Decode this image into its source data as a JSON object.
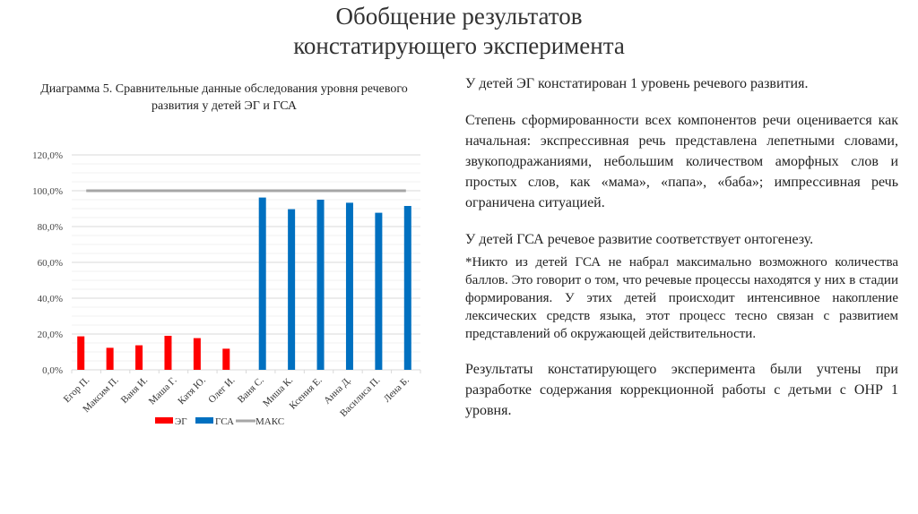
{
  "title_line1": "Обобщение результатов",
  "title_line2": "констатирующего эксперимента",
  "chart_data": {
    "type": "bar",
    "title": "Диаграмма 5. Сравнительные данные обследования уровня речевого развития  у детей ЭГ и ГСА",
    "categories": [
      "Егор П.",
      "Максим П.",
      "Ваня И.",
      "Маша Г.",
      "Катя Ю.",
      "Олег И.",
      "Ваня С.",
      "Миша К.",
      "Ксения Е.",
      "Анна Д.",
      "Василиса П.",
      "Лена Б."
    ],
    "series": [
      {
        "name": "ЭГ",
        "type": "bar",
        "color": "#ff0000",
        "values": [
          18.7,
          12.3,
          13.7,
          19.0,
          17.7,
          11.8,
          null,
          null,
          null,
          null,
          null,
          null
        ]
      },
      {
        "name": "ГСА",
        "type": "bar",
        "color": "#0070c0",
        "values": [
          null,
          null,
          null,
          null,
          null,
          null,
          96.2,
          89.7,
          95.0,
          93.3,
          87.7,
          91.5
        ]
      },
      {
        "name": "МАКС",
        "type": "line",
        "color": "#a6a6a6",
        "values": [
          100,
          100,
          100,
          100,
          100,
          100,
          100,
          100,
          100,
          100,
          100,
          100
        ]
      }
    ],
    "yticks": [
      "0,0%",
      "20,0%",
      "40,0%",
      "60,0%",
      "80,0%",
      "100,0%",
      "120,0%"
    ],
    "ylim": [
      0,
      120
    ],
    "grid": true,
    "legend": "bottom"
  },
  "text": {
    "p1": "У детей ЭГ  констатирован 1 уровень речевого развития.",
    "p2": "Степень сформированности всех компонентов речи оценивается как начальная: экспрессивная речь представлена лепетными словами, звукоподражаниями, небольшим количеством аморфных слов и простых слов, как «мама», «папа», «баба»; импрессивная речь ограничена ситуацией.",
    "p3": "У детей ГСА  речевое развитие  соответствует онтогенезу.",
    "p4": "*Никто из детей ГСА не набрал максимально возможного количества баллов. Это говорит о том, что речевые процессы находятся у них в стадии формирования.  У этих детей происходит интенсивное накопление лексических средств языка, этот процесс тесно связан с развитием представлений об окружающей действительности.",
    "p5": "Результаты констатирующего эксперимента были учтены при разработке содержания коррекционной работы с детьми с ОНР 1 уровня."
  }
}
